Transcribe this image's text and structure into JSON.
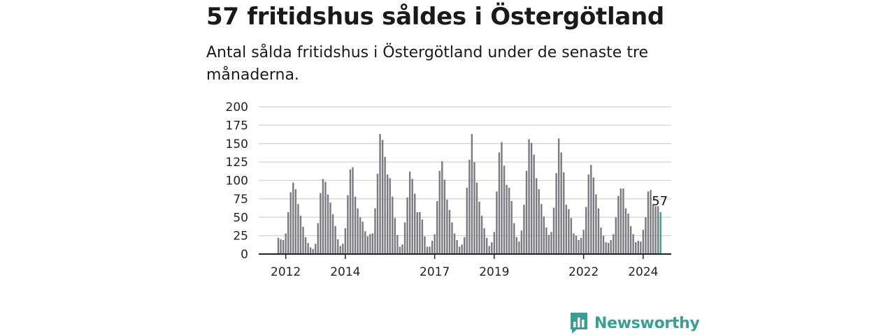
{
  "title": "57 fritidshus såldes i Östergötland",
  "subtitle": "Antal sålda fritidshus i Östergötland under de senaste tre månaderna.",
  "brand": {
    "name": "Newsworthy",
    "logo_icon": "bar-chart-speech-bubble-icon"
  },
  "colors": {
    "bar": "#7a7a80",
    "highlight": "#3a9e97",
    "grid": "#d9d9d9",
    "axis": "#222222"
  },
  "chart_data": {
    "type": "bar",
    "title": "57 fritidshus såldes i Östergötland",
    "subtitle": "Antal sålda fritidshus i Östergötland under de senaste tre månaderna.",
    "xlabel": "",
    "ylabel": "",
    "ylim": [
      0,
      200
    ],
    "yticks": [
      "0",
      "25",
      "50",
      "75",
      "100",
      "125",
      "150",
      "175",
      "200"
    ],
    "xticks": [
      {
        "label": "2012",
        "index": 3
      },
      {
        "label": "2014",
        "index": 27
      },
      {
        "label": "2017",
        "index": 63
      },
      {
        "label": "2019",
        "index": 87
      },
      {
        "label": "2022",
        "index": 123
      },
      {
        "label": "2024",
        "index": 147
      }
    ],
    "grid": true,
    "highlight_last": true,
    "last_value_label": "57",
    "values": [
      22,
      20,
      19,
      28,
      57,
      84,
      97,
      88,
      68,
      52,
      37,
      23,
      15,
      9,
      7,
      14,
      42,
      83,
      102,
      98,
      81,
      70,
      54,
      38,
      20,
      11,
      14,
      35,
      80,
      115,
      118,
      78,
      62,
      50,
      44,
      31,
      24,
      27,
      28,
      62,
      109,
      163,
      155,
      132,
      108,
      103,
      78,
      49,
      26,
      10,
      13,
      43,
      77,
      112,
      102,
      82,
      57,
      57,
      47,
      24,
      10,
      10,
      18,
      27,
      72,
      113,
      126,
      101,
      74,
      60,
      43,
      28,
      19,
      10,
      13,
      23,
      90,
      128,
      163,
      125,
      97,
      71,
      52,
      35,
      22,
      11,
      16,
      30,
      85,
      138,
      152,
      120,
      94,
      90,
      72,
      42,
      23,
      17,
      32,
      67,
      113,
      156,
      151,
      135,
      103,
      88,
      68,
      51,
      36,
      26,
      30,
      63,
      110,
      157,
      138,
      111,
      67,
      61,
      49,
      28,
      25,
      19,
      22,
      33,
      64,
      108,
      121,
      104,
      81,
      62,
      36,
      25,
      16,
      15,
      19,
      27,
      50,
      79,
      89,
      89,
      62,
      55,
      38,
      27,
      16,
      18,
      17,
      33,
      50,
      85,
      87,
      67,
      65,
      65,
      57
    ]
  }
}
